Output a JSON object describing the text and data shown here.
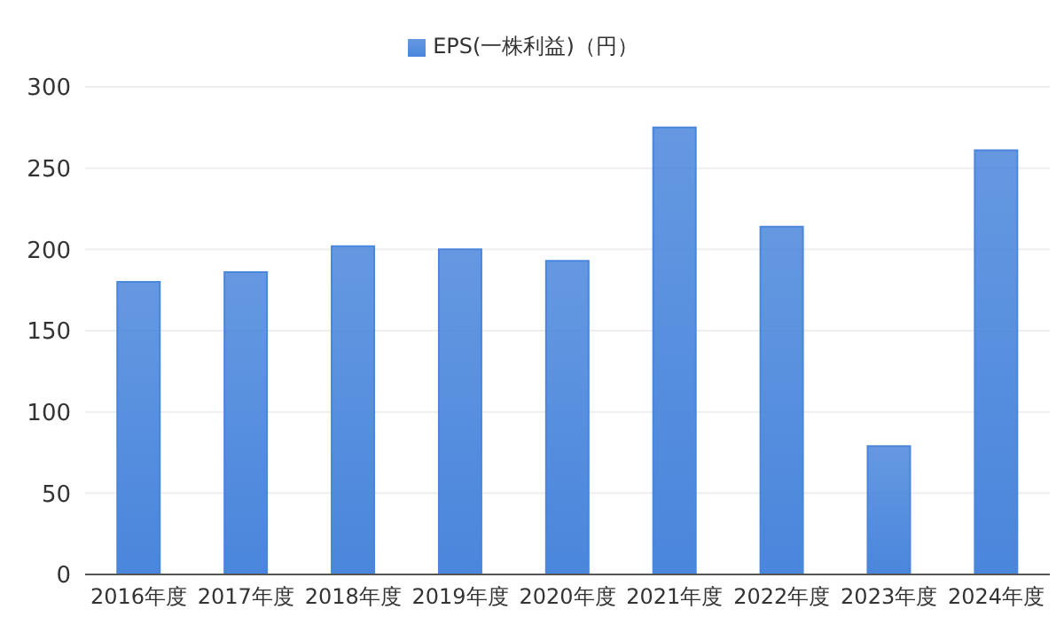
{
  "chart_data": {
    "type": "bar",
    "categories": [
      "2016年度",
      "2017年度",
      "2018年度",
      "2019年度",
      "2020年度",
      "2021年度",
      "2022年度",
      "2023年度",
      "2024年度"
    ],
    "series": [
      {
        "name": "EPS(一株利益)（円）",
        "color": "#4a86dc",
        "values": [
          180,
          186,
          202,
          200,
          193,
          275,
          214,
          79,
          261
        ]
      }
    ],
    "ylim": [
      0,
      300
    ],
    "yticks": [
      0,
      50,
      100,
      150,
      200,
      250,
      300
    ],
    "grid": "y",
    "legend": "top"
  }
}
